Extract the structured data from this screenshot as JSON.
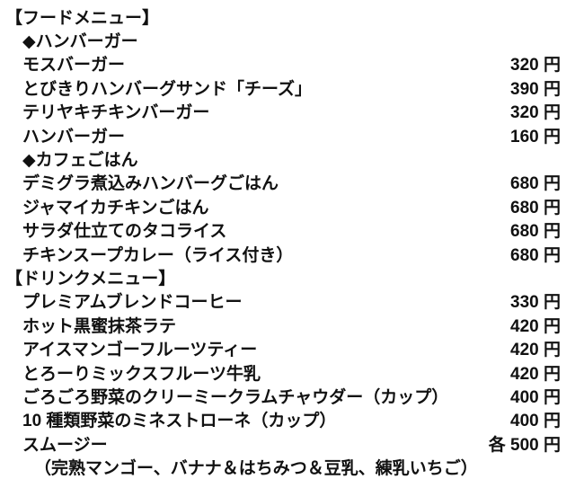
{
  "document": {
    "background": "#ffffff",
    "text_color": "#111111",
    "currency_unit": "円",
    "each_prefix": "各"
  },
  "menu": {
    "rows": [
      {
        "kind": "section",
        "label": "【フードメニュー】"
      },
      {
        "kind": "category",
        "label": "◆ハンバーガー"
      },
      {
        "kind": "item",
        "label": "モスバーガー",
        "price": "320",
        "unit": "円"
      },
      {
        "kind": "item",
        "label": "とびきりハンバーグサンド「チーズ」",
        "price": "390",
        "unit": "円"
      },
      {
        "kind": "item",
        "label": "テリヤキチキンバーガー",
        "price": "320",
        "unit": "円"
      },
      {
        "kind": "item",
        "label": "ハンバーガー",
        "price": "160",
        "unit": "円"
      },
      {
        "kind": "category",
        "label": "◆カフェごはん"
      },
      {
        "kind": "item",
        "label": "デミグラ煮込みハンバーグごはん",
        "price": "680",
        "unit": "円"
      },
      {
        "kind": "item",
        "label": "ジャマイカチキンごはん",
        "price": "680",
        "unit": "円"
      },
      {
        "kind": "item",
        "label": "サラダ仕立てのタコライス",
        "price": "680",
        "unit": "円"
      },
      {
        "kind": "item",
        "label": "チキンスープカレー（ライス付き）",
        "price": "680",
        "unit": "円"
      },
      {
        "kind": "section",
        "label": "【ドリンクメニュー】"
      },
      {
        "kind": "item",
        "label": "プレミアムブレンドコーヒー",
        "price": "330",
        "unit": "円"
      },
      {
        "kind": "item",
        "label": "ホット黒蜜抹茶ラテ",
        "price": "420",
        "unit": "円"
      },
      {
        "kind": "item",
        "label": "アイスマンゴーフルーツティー",
        "price": "420",
        "unit": "円"
      },
      {
        "kind": "item",
        "label": "とろーりミックスフルーツ牛乳",
        "price": "420",
        "unit": "円"
      },
      {
        "kind": "item",
        "label": "ごろごろ野菜のクリーミークラムチャウダー（カップ）",
        "price": "400",
        "unit": "円"
      },
      {
        "kind": "item",
        "label": "10 種類野菜のミネストローネ（カップ）",
        "price": "400",
        "unit": "円"
      },
      {
        "kind": "item",
        "label": "スムージー",
        "price": "500",
        "unit": "円",
        "price_prefix": "各"
      },
      {
        "kind": "note",
        "label": "（完熟マンゴー、バナナ＆はちみつ＆豆乳、練乳いちご）"
      }
    ]
  }
}
